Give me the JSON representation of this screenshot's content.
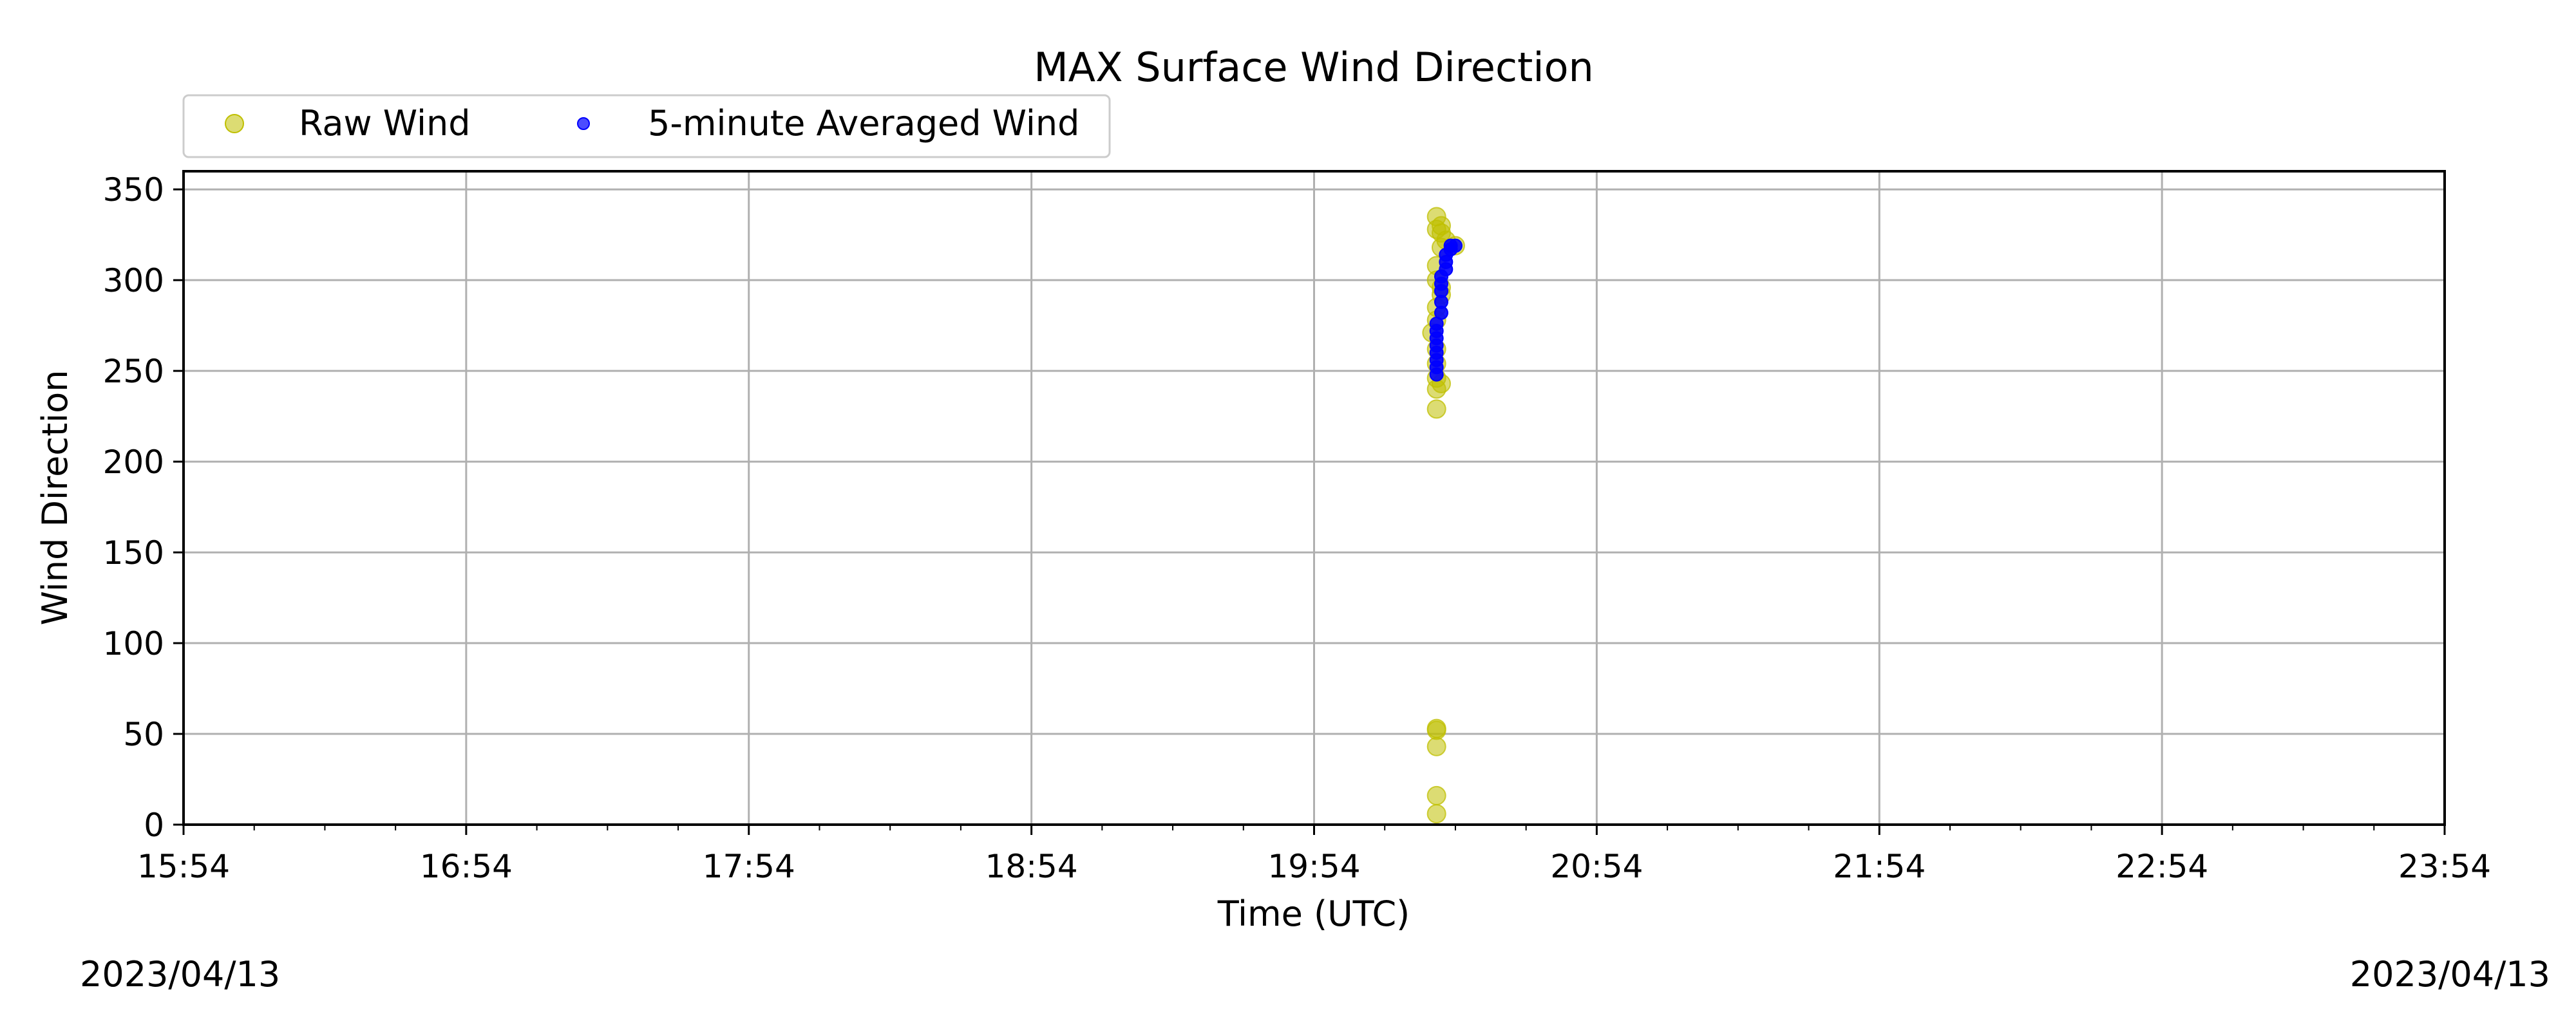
{
  "chart_data": {
    "type": "scatter",
    "title": "MAX Surface Wind Direction",
    "xlabel": "Time (UTC)",
    "ylabel": "Wind Direction",
    "x_ticks": [
      "15:54",
      "16:54",
      "17:54",
      "18:54",
      "19:54",
      "20:54",
      "21:54",
      "22:54",
      "23:54"
    ],
    "x_range_hours": [
      0,
      8
    ],
    "x_minor_step_hours": 0.25,
    "y_ticks": [
      0,
      50,
      100,
      150,
      200,
      250,
      300,
      350
    ],
    "ylim": [
      0,
      360
    ],
    "grid": true,
    "legend_position": "upper-left, above plot",
    "date_left": "2023/04/13",
    "date_right": "2023/04/13",
    "series": [
      {
        "name": "Raw Wind",
        "color": "#bfbf00",
        "marker": "circle-large",
        "points": [
          [
            "20:20",
            6
          ],
          [
            "20:20",
            16
          ],
          [
            "20:20",
            43
          ],
          [
            "20:20",
            52
          ],
          [
            "20:20",
            53
          ],
          [
            "20:20",
            229
          ],
          [
            "20:20",
            240
          ],
          [
            "20:21",
            243
          ],
          [
            "20:20",
            246
          ],
          [
            "20:19",
            271
          ],
          [
            "20:20",
            262
          ],
          [
            "20:20",
            278
          ],
          [
            "20:20",
            285
          ],
          [
            "20:21",
            292
          ],
          [
            "20:20",
            300
          ],
          [
            "20:20",
            308
          ],
          [
            "20:21",
            318
          ],
          [
            "20:20",
            328
          ],
          [
            "20:21",
            330
          ],
          [
            "20:20",
            335
          ],
          [
            "20:21",
            326
          ],
          [
            "20:22",
            322
          ],
          [
            "20:24",
            319
          ],
          [
            "20:21",
            296
          ],
          [
            "20:20",
            254
          ]
        ]
      },
      {
        "name": "5-minute Averaged Wind",
        "color": "#0000ff",
        "marker": "circle-small",
        "points": [
          [
            "20:20",
            248
          ],
          [
            "20:20",
            252
          ],
          [
            "20:20",
            256
          ],
          [
            "20:20",
            260
          ],
          [
            "20:20",
            264
          ],
          [
            "20:20",
            268
          ],
          [
            "20:20",
            272
          ],
          [
            "20:20",
            276
          ],
          [
            "20:21",
            282
          ],
          [
            "20:21",
            288
          ],
          [
            "20:21",
            294
          ],
          [
            "20:21",
            298
          ],
          [
            "20:21",
            302
          ],
          [
            "20:22",
            306
          ],
          [
            "20:22",
            310
          ],
          [
            "20:22",
            314
          ],
          [
            "20:23",
            317
          ],
          [
            "20:23",
            319
          ],
          [
            "20:24",
            319
          ]
        ]
      }
    ]
  }
}
